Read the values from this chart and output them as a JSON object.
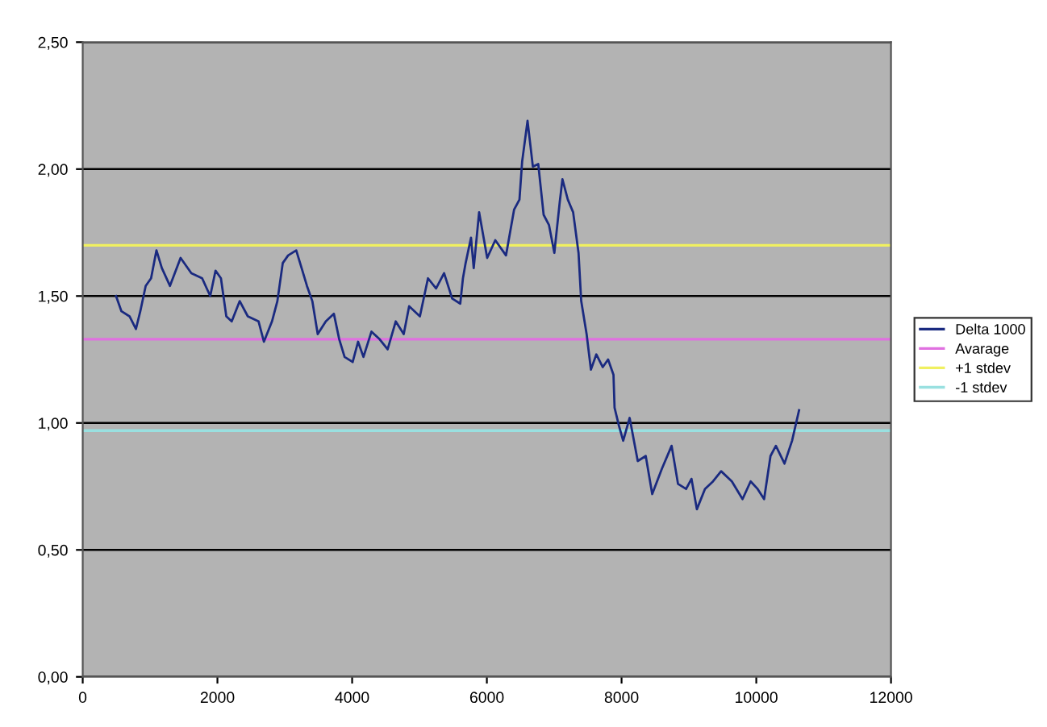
{
  "chart_data": {
    "type": "line",
    "series": [
      {
        "name": "Delta 1000",
        "color": "#1a2a80",
        "x": [
          495,
          575,
          695,
          790,
          855,
          935,
          1015,
          1095,
          1175,
          1295,
          1453,
          1613,
          1773,
          1893,
          1972,
          2052,
          2132,
          2212,
          2331,
          2451,
          2611,
          2690,
          2810,
          2890,
          2970,
          3050,
          3170,
          3250,
          3329,
          3409,
          3489,
          3609,
          3729,
          3808,
          3888,
          4008,
          4088,
          4168,
          4287,
          4407,
          4527,
          4647,
          4766,
          4846,
          5006,
          5126,
          5246,
          5365,
          5485,
          5605,
          5645,
          5685,
          5765,
          5805,
          5885,
          6005,
          6125,
          6284,
          6404,
          6484,
          6524,
          6604,
          6683,
          6763,
          6843,
          6922,
          7002,
          7082,
          7122,
          7202,
          7281,
          7361,
          7401,
          7481,
          7545,
          7625,
          7720,
          7800,
          7880,
          7896,
          7960,
          8024,
          8120,
          8240,
          8359,
          8455,
          8599,
          8743,
          8838,
          8958,
          9038,
          9118,
          9238,
          9358,
          9478,
          9637,
          9796,
          9916,
          10020,
          10116,
          10211,
          10291,
          10419,
          10531,
          10635
        ],
        "values": [
          1.5,
          1.44,
          1.42,
          1.37,
          1.44,
          1.54,
          1.57,
          1.68,
          1.61,
          1.54,
          1.65,
          1.59,
          1.57,
          1.5,
          1.6,
          1.57,
          1.42,
          1.4,
          1.48,
          1.42,
          1.4,
          1.32,
          1.4,
          1.48,
          1.63,
          1.66,
          1.68,
          1.61,
          1.54,
          1.48,
          1.35,
          1.4,
          1.43,
          1.33,
          1.26,
          1.24,
          1.32,
          1.26,
          1.36,
          1.33,
          1.29,
          1.4,
          1.35,
          1.46,
          1.42,
          1.57,
          1.53,
          1.59,
          1.49,
          1.47,
          1.57,
          1.63,
          1.73,
          1.61,
          1.83,
          1.65,
          1.72,
          1.66,
          1.84,
          1.88,
          2.03,
          2.19,
          2.01,
          2.02,
          1.82,
          1.78,
          1.67,
          1.87,
          1.96,
          1.88,
          1.83,
          1.67,
          1.48,
          1.35,
          1.21,
          1.27,
          1.22,
          1.25,
          1.19,
          1.06,
          0.99,
          0.93,
          1.02,
          0.85,
          0.87,
          0.72,
          0.82,
          0.91,
          0.76,
          0.74,
          0.78,
          0.66,
          0.74,
          0.77,
          0.81,
          0.77,
          0.7,
          0.77,
          0.74,
          0.7,
          0.87,
          0.91,
          0.84,
          0.93,
          1.05
        ]
      },
      {
        "name": "Avarage",
        "color": "#e070e0",
        "x": [
          0,
          12000
        ],
        "values": [
          1.33,
          1.33
        ]
      },
      {
        "name": "+1 stdev",
        "color": "#f0f060",
        "x": [
          0,
          12000
        ],
        "values": [
          1.7,
          1.7
        ]
      },
      {
        "name": "-1 stdev",
        "color": "#99e0e0",
        "x": [
          0,
          12000
        ],
        "values": [
          0.97,
          0.97
        ]
      }
    ],
    "xlim": [
      0,
      12000
    ],
    "xticks": [
      0,
      2000,
      4000,
      6000,
      8000,
      10000,
      12000
    ],
    "ylim": [
      0,
      2.5
    ],
    "yticks": [
      {
        "value": 0,
        "label": "0,00"
      },
      {
        "value": 0.5,
        "label": "0,50"
      },
      {
        "value": 1,
        "label": "1,00"
      },
      {
        "value": 1.5,
        "label": "1,50"
      },
      {
        "value": 2,
        "label": "2,00"
      },
      {
        "value": 2.5,
        "label": "2,50"
      }
    ],
    "grid": "y",
    "legend": "right",
    "marker": "none",
    "line_style": "solid"
  }
}
